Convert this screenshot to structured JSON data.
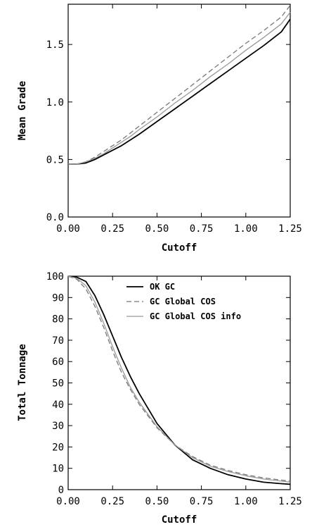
{
  "chart_data": [
    {
      "type": "line",
      "title": "",
      "xlabel": "Cutoff",
      "ylabel": "Mean Grade",
      "xlim": [
        0,
        1.25
      ],
      "ylim": [
        0,
        1.85
      ],
      "xticks": [
        "0.00",
        "0.25",
        "0.50",
        "0.75",
        "1.00",
        "1.25"
      ],
      "yticks": [
        "0.0",
        "0.5",
        "1.0",
        "1.5"
      ],
      "x": [
        0,
        0.05,
        0.1,
        0.15,
        0.2,
        0.25,
        0.3,
        0.35,
        0.4,
        0.5,
        0.6,
        0.7,
        0.8,
        0.9,
        1.0,
        1.1,
        1.2,
        1.25
      ],
      "grid": false,
      "series": [
        {
          "name": "OK GC",
          "color": "#000000",
          "dash": "solid",
          "values": [
            0.46,
            0.46,
            0.47,
            0.5,
            0.54,
            0.58,
            0.62,
            0.67,
            0.72,
            0.83,
            0.94,
            1.05,
            1.16,
            1.27,
            1.38,
            1.49,
            1.61,
            1.72
          ]
        },
        {
          "name": "GC Global COS",
          "color": "#777777",
          "dash": "dashed",
          "values": [
            0.46,
            0.46,
            0.48,
            0.52,
            0.57,
            0.62,
            0.67,
            0.73,
            0.79,
            0.91,
            1.03,
            1.15,
            1.27,
            1.39,
            1.51,
            1.62,
            1.74,
            1.84
          ]
        },
        {
          "name": "GC Global COS info",
          "color": "#999999",
          "dash": "solid",
          "values": [
            0.46,
            0.46,
            0.48,
            0.51,
            0.55,
            0.6,
            0.65,
            0.7,
            0.76,
            0.87,
            0.99,
            1.1,
            1.22,
            1.33,
            1.45,
            1.56,
            1.68,
            1.78
          ]
        }
      ]
    },
    {
      "type": "line",
      "title": "",
      "xlabel": "Cutoff",
      "ylabel": "Total Tonnage",
      "xlim": [
        0,
        1.25
      ],
      "ylim": [
        0,
        100
      ],
      "xticks": [
        "0.00",
        "0.25",
        "0.50",
        "0.75",
        "1.00",
        "1.25"
      ],
      "yticks": [
        "0",
        "10",
        "20",
        "30",
        "40",
        "50",
        "60",
        "70",
        "80",
        "90",
        "100"
      ],
      "x": [
        0,
        0.05,
        0.1,
        0.15,
        0.2,
        0.25,
        0.3,
        0.35,
        0.4,
        0.5,
        0.6,
        0.7,
        0.8,
        0.9,
        1.0,
        1.1,
        1.2,
        1.25
      ],
      "grid": false,
      "legend": {
        "position": "top-right",
        "entries": [
          "OK GC",
          "GC Global COS",
          "GC Global COS info"
        ]
      },
      "series": [
        {
          "name": "OK GC",
          "color": "#000000",
          "dash": "solid",
          "values": [
            100,
            99.5,
            97.5,
            91,
            82,
            72,
            62,
            53,
            45,
            31,
            21,
            14,
            10,
            7,
            5,
            3.5,
            2.8,
            2.5
          ]
        },
        {
          "name": "GC Global COS",
          "color": "#777777",
          "dash": "dashed",
          "values": [
            100,
            98.5,
            94,
            86,
            76,
            65,
            55,
            47,
            40,
            29,
            21,
            15.5,
            11.5,
            9,
            7,
            5.5,
            4.5,
            4
          ]
        },
        {
          "name": "GC Global COS info",
          "color": "#999999",
          "dash": "solid",
          "values": [
            100,
            99,
            95.5,
            88,
            78,
            67,
            57,
            48,
            41,
            29.5,
            21,
            15,
            11,
            8.5,
            6.5,
            5,
            4,
            3.5
          ]
        }
      ]
    }
  ]
}
